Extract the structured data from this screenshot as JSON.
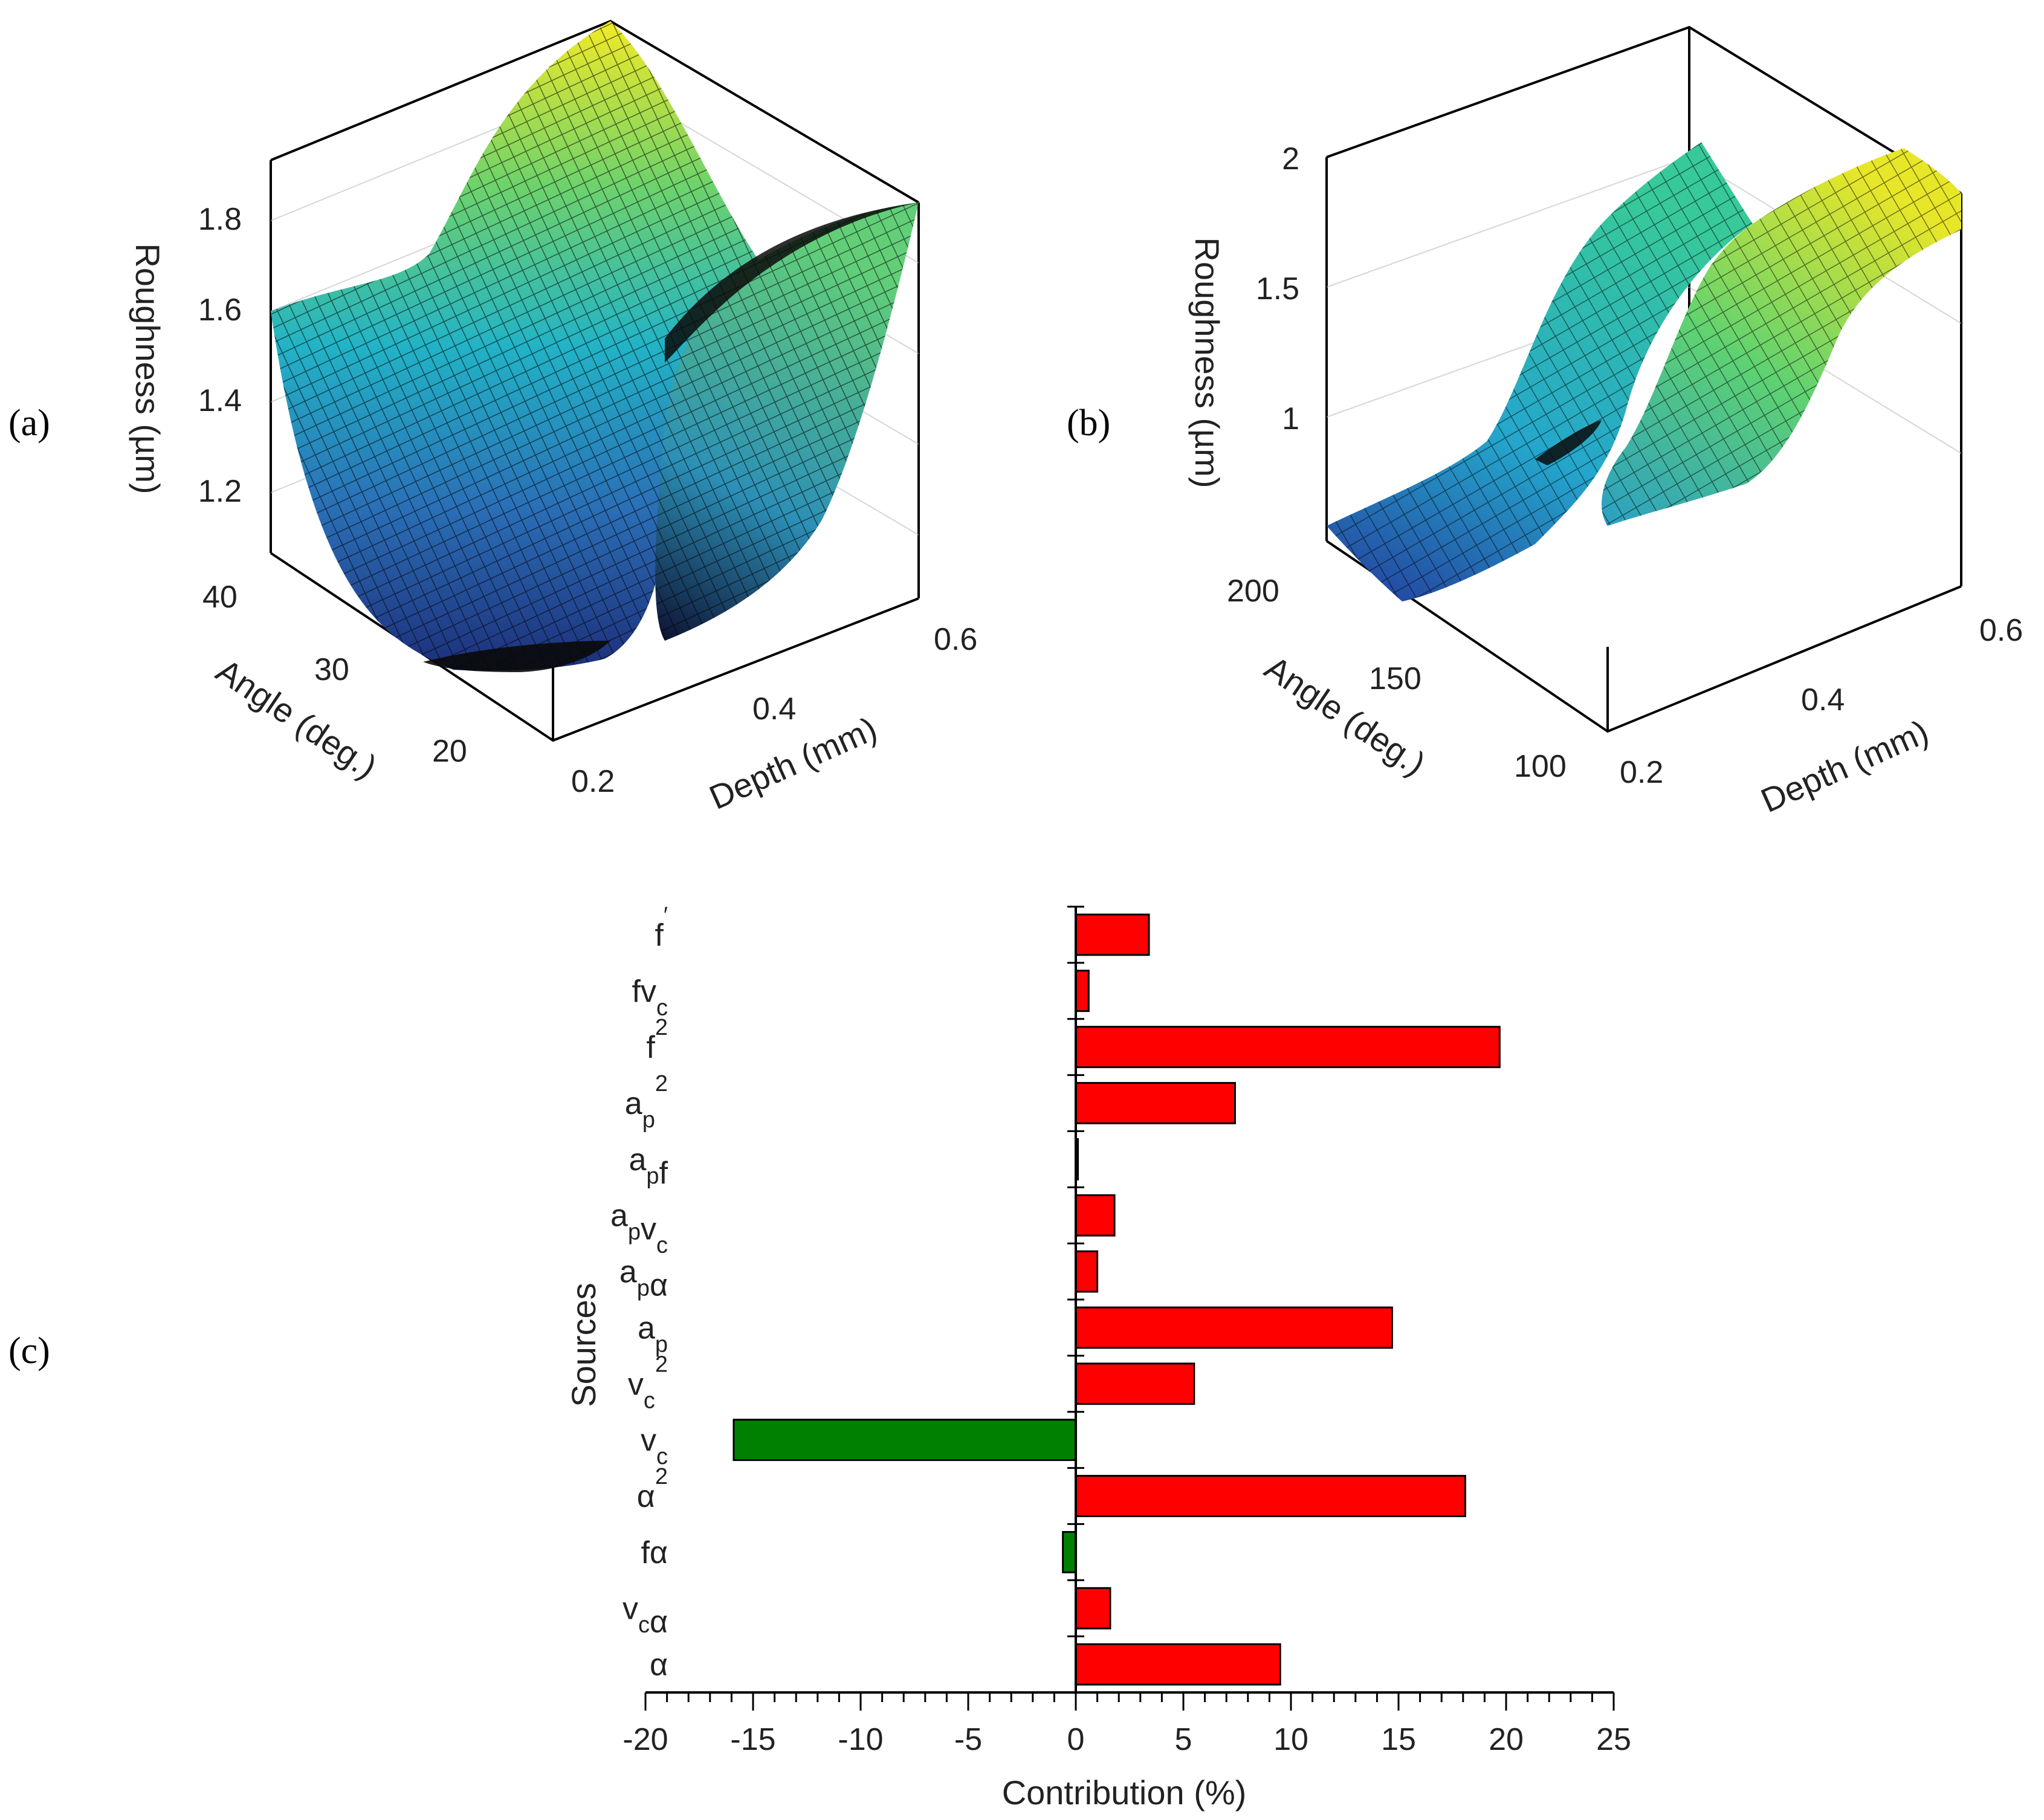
{
  "panels": {
    "a": "(a)",
    "b": "(b)",
    "c": "(c)"
  },
  "chart_data": [
    {
      "panel": "a",
      "type": "surface3d",
      "zlabel": "Roughness (µm)",
      "xlabel": "Depth (mm)",
      "ylabel": "Angle (deg.)",
      "z_ticks": [
        "1.2",
        "1.4",
        "1.6",
        "1.8"
      ],
      "x_ticks": [
        "0.2",
        "0.4",
        "0.6"
      ],
      "y_ticks": [
        "20",
        "30",
        "40"
      ],
      "colormap": [
        "#2b3b9a",
        "#2b7fc0",
        "#23b5c8",
        "#5fd27a",
        "#d8e32a",
        "#f4ec26"
      ]
    },
    {
      "panel": "b",
      "type": "surface3d",
      "zlabel": "Roughness (µm)",
      "xlabel": "Depth (mm)",
      "ylabel": "Angle (deg.)",
      "z_ticks": [
        "1",
        "1.5",
        "2"
      ],
      "x_ticks": [
        "0.2",
        "0.4",
        "0.6"
      ],
      "y_ticks": [
        "100",
        "150",
        "200"
      ],
      "colormap": [
        "#2b3b9a",
        "#2b7fc0",
        "#23b5c8",
        "#5fd27a",
        "#d8e32a",
        "#f4ec26"
      ]
    },
    {
      "panel": "c",
      "type": "bar",
      "orientation": "horizontal",
      "xlabel": "Contribution (%)",
      "ylabel": "Sources",
      "xlim": [
        -20,
        25
      ],
      "x_ticks": [
        -20,
        -15,
        -10,
        -5,
        0,
        5,
        10,
        15,
        20,
        25
      ],
      "positive_color": "#ff0000",
      "negative_color": "#008000",
      "bars": [
        {
          "base": "f",
          "sub": "",
          "sup": "′",
          "value": 3.4
        },
        {
          "base": "fv",
          "sub": "c",
          "sup": "",
          "value": 0.6
        },
        {
          "base": "f",
          "sub": "",
          "sup": "2",
          "value": 19.7
        },
        {
          "base": "a",
          "sub": "p",
          "sup": "2",
          "value": 7.4
        },
        {
          "base": "a",
          "sub": "p",
          "sup": "",
          "tail": "f",
          "value": 0.1
        },
        {
          "base": "a",
          "sub": "p",
          "sup": "",
          "tail": "v",
          "tailsub": "c",
          "value": 1.8
        },
        {
          "base": "a",
          "sub": "p",
          "sup": "",
          "tail": "α",
          "value": 1.0
        },
        {
          "base": "a",
          "sub": "p",
          "sup": "",
          "value": 14.7
        },
        {
          "base": "v",
          "sub": "c",
          "sup": "2",
          "value": 5.5
        },
        {
          "base": "v",
          "sub": "c",
          "sup": "",
          "value": -15.9
        },
        {
          "base": "α",
          "sub": "",
          "sup": "2",
          "value": 18.1
        },
        {
          "base": "fα",
          "sub": "",
          "sup": "",
          "value": -0.6
        },
        {
          "base": "v",
          "sub": "c",
          "sup": "",
          "tail": "α",
          "value": 1.6
        },
        {
          "base": "α",
          "sub": "",
          "sup": "",
          "value": 9.5
        }
      ]
    }
  ]
}
